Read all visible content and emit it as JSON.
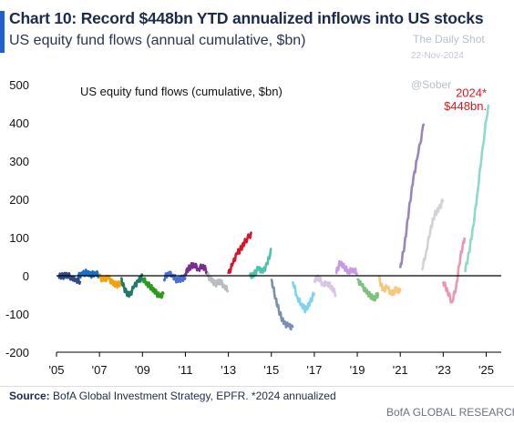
{
  "header": {
    "title": "Chart 10: Record $448bn YTD annualized inflows into US stocks",
    "subtitle": "US equity fund flows (annual cumulative, $bn)"
  },
  "watermark": {
    "publisher": "The Daily Shot",
    "date": "22-Nov-2024",
    "handle": "@Sober"
  },
  "footer": {
    "source_label": "Source:",
    "source_text": " BofA Global Investment Strategy, EPFR. *2024 annualized",
    "brand": "BofA GLOBAL RESEARCH"
  },
  "colors": {
    "title": "#1c2b4a",
    "accent": "#1f5fd0",
    "annotation": "#e0161e",
    "zero_line": "#000000"
  },
  "chart_data": {
    "type": "line",
    "title": "US equity fund flows (cumulative, $bn)",
    "xlabel": "",
    "ylabel": "",
    "xlim": [
      2005,
      2025.7
    ],
    "ylim": [
      -200,
      500
    ],
    "yticks": [
      -200,
      -100,
      0,
      100,
      200,
      300,
      400,
      500
    ],
    "xticks": [
      {
        "value": 2005,
        "label": "'05"
      },
      {
        "value": 2007,
        "label": "'07"
      },
      {
        "value": 2009,
        "label": "'09"
      },
      {
        "value": 2011,
        "label": "'11"
      },
      {
        "value": 2013,
        "label": "'13"
      },
      {
        "value": 2015,
        "label": "'15"
      },
      {
        "value": 2017,
        "label": "'17"
      },
      {
        "value": 2019,
        "label": "'19"
      },
      {
        "value": 2021,
        "label": "'21"
      },
      {
        "value": 2023,
        "label": "'23"
      },
      {
        "value": 2025,
        "label": "'25"
      }
    ],
    "grid": false,
    "legend": "none",
    "annotations": [
      {
        "text": "2024*",
        "x": 2024.6,
        "y": 480
      },
      {
        "text": "$448bn.",
        "x": 2024.6,
        "y": 445
      }
    ],
    "series": [
      {
        "year": 2005,
        "color": "#2f4a8a",
        "points": [
          [
            2005.1,
            0
          ],
          [
            2005.3,
            -1
          ],
          [
            2005.5,
            2
          ],
          [
            2005.7,
            -4
          ],
          [
            2005.9,
            -10
          ],
          [
            2006.1,
            -14
          ]
        ]
      },
      {
        "year": 2006,
        "color": "#1a6fc4",
        "points": [
          [
            2006.0,
            -2
          ],
          [
            2006.2,
            4
          ],
          [
            2006.4,
            9
          ],
          [
            2006.6,
            2
          ],
          [
            2006.8,
            7
          ],
          [
            2007.0,
            2
          ]
        ]
      },
      {
        "year": 2007,
        "color": "#f2a20c",
        "points": [
          [
            2007.0,
            -3
          ],
          [
            2007.2,
            -12
          ],
          [
            2007.4,
            -5
          ],
          [
            2007.6,
            -18
          ],
          [
            2007.8,
            -24
          ],
          [
            2008.0,
            -20
          ]
        ]
      },
      {
        "year": 2008,
        "color": "#1f7a6b",
        "points": [
          [
            2008.0,
            -8
          ],
          [
            2008.2,
            -40
          ],
          [
            2008.4,
            -52
          ],
          [
            2008.6,
            -30
          ],
          [
            2008.8,
            -15
          ],
          [
            2009.0,
            -2
          ]
        ]
      },
      {
        "year": 2009,
        "color": "#2b9a1e",
        "points": [
          [
            2009.0,
            -5
          ],
          [
            2009.2,
            -20
          ],
          [
            2009.4,
            -30
          ],
          [
            2009.6,
            -42
          ],
          [
            2009.8,
            -55
          ],
          [
            2010.0,
            -48
          ]
        ]
      },
      {
        "year": 2010,
        "color": "#4a6fd0",
        "points": [
          [
            2010.0,
            -8
          ],
          [
            2010.2,
            8
          ],
          [
            2010.4,
            2
          ],
          [
            2010.6,
            -12
          ],
          [
            2010.8,
            -8
          ],
          [
            2011.0,
            -4
          ]
        ]
      },
      {
        "year": 2011,
        "color": "#7b2d8e",
        "points": [
          [
            2011.0,
            8
          ],
          [
            2011.2,
            22
          ],
          [
            2011.4,
            30
          ],
          [
            2011.6,
            18
          ],
          [
            2011.8,
            26
          ],
          [
            2012.0,
            12
          ]
        ]
      },
      {
        "year": 2012,
        "color": "#b9bdc2",
        "points": [
          [
            2012.0,
            2
          ],
          [
            2012.2,
            -10
          ],
          [
            2012.4,
            -22
          ],
          [
            2012.6,
            -14
          ],
          [
            2012.8,
            -26
          ],
          [
            2013.0,
            -38
          ]
        ]
      },
      {
        "year": 2013,
        "color": "#d8142b",
        "points": [
          [
            2013.0,
            5
          ],
          [
            2013.2,
            30
          ],
          [
            2013.4,
            58
          ],
          [
            2013.6,
            72
          ],
          [
            2013.8,
            92
          ],
          [
            2014.1,
            112
          ]
        ]
      },
      {
        "year": 2014,
        "color": "#4fc1ad",
        "points": [
          [
            2014.0,
            -2
          ],
          [
            2014.2,
            4
          ],
          [
            2014.4,
            20
          ],
          [
            2014.6,
            8
          ],
          [
            2014.8,
            30
          ],
          [
            2015.0,
            68
          ]
        ]
      },
      {
        "year": 2015,
        "color": "#7a8fb4",
        "points": [
          [
            2015.0,
            -8
          ],
          [
            2015.2,
            -60
          ],
          [
            2015.4,
            -100
          ],
          [
            2015.6,
            -125
          ],
          [
            2015.8,
            -132
          ],
          [
            2016.0,
            -136
          ]
        ]
      },
      {
        "year": 2016,
        "color": "#7fd3ea",
        "points": [
          [
            2016.0,
            -15
          ],
          [
            2016.2,
            -55
          ],
          [
            2016.4,
            -75
          ],
          [
            2016.6,
            -90
          ],
          [
            2016.8,
            -70
          ],
          [
            2017.0,
            -45
          ]
        ]
      },
      {
        "year": 2017,
        "color": "#d9c6e2",
        "points": [
          [
            2017.0,
            -10
          ],
          [
            2017.2,
            -5
          ],
          [
            2017.4,
            -22
          ],
          [
            2017.6,
            -18
          ],
          [
            2017.8,
            -30
          ],
          [
            2018.0,
            -48
          ]
        ]
      },
      {
        "year": 2018,
        "color": "#c89ae0",
        "points": [
          [
            2018.0,
            5
          ],
          [
            2018.2,
            35
          ],
          [
            2018.4,
            22
          ],
          [
            2018.6,
            10
          ],
          [
            2018.8,
            18
          ],
          [
            2019.0,
            8
          ]
        ]
      },
      {
        "year": 2019,
        "color": "#7dc27d",
        "points": [
          [
            2019.0,
            -12
          ],
          [
            2019.2,
            -25
          ],
          [
            2019.4,
            -40
          ],
          [
            2019.6,
            -52
          ],
          [
            2019.8,
            -60
          ],
          [
            2020.0,
            -45
          ]
        ]
      },
      {
        "year": 2020,
        "color": "#f5c87a",
        "points": [
          [
            2020.0,
            -5
          ],
          [
            2020.2,
            -38
          ],
          [
            2020.4,
            -30
          ],
          [
            2020.6,
            -50
          ],
          [
            2020.8,
            -35
          ],
          [
            2021.0,
            -42
          ]
        ]
      },
      {
        "year": 2021,
        "color": "#9a86be",
        "points": [
          [
            2021.0,
            20
          ],
          [
            2021.2,
            80
          ],
          [
            2021.4,
            170
          ],
          [
            2021.6,
            250
          ],
          [
            2021.8,
            310
          ],
          [
            2022.1,
            398
          ]
        ]
      },
      {
        "year": 2022,
        "color": "#d0d3d8",
        "points": [
          [
            2022.0,
            15
          ],
          [
            2022.2,
            60
          ],
          [
            2022.4,
            120
          ],
          [
            2022.6,
            160
          ],
          [
            2022.8,
            175
          ],
          [
            2023.0,
            198
          ]
        ]
      },
      {
        "year": 2023,
        "color": "#e898b0",
        "points": [
          [
            2023.0,
            -15
          ],
          [
            2023.2,
            -40
          ],
          [
            2023.4,
            -70
          ],
          [
            2023.6,
            -30
          ],
          [
            2023.8,
            50
          ],
          [
            2024.0,
            100
          ]
        ]
      },
      {
        "year": 2024,
        "color": "#8ed8cc",
        "points": [
          [
            2024.0,
            10
          ],
          [
            2024.2,
            60
          ],
          [
            2024.4,
            130
          ],
          [
            2024.6,
            220
          ],
          [
            2024.8,
            320
          ],
          [
            2025.1,
            448
          ]
        ]
      }
    ]
  }
}
